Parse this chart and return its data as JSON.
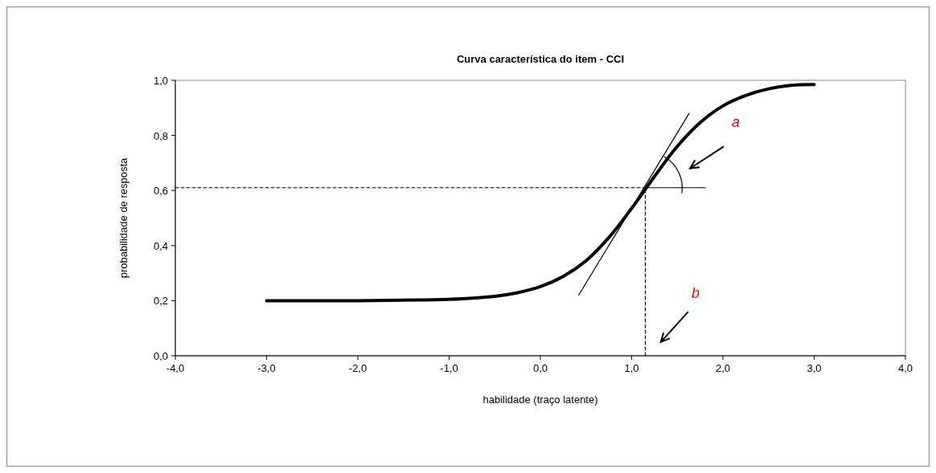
{
  "chart_data": {
    "type": "line",
    "title": "Curva característica do item - CCI",
    "xlabel": "habilidade (traço latente)",
    "ylabel": "probabilidade de resposta",
    "xlim": [
      -4,
      4
    ],
    "ylim": [
      0,
      1
    ],
    "xticks": [
      {
        "value": -4,
        "label": "-4,0"
      },
      {
        "value": -3,
        "label": "-3,0"
      },
      {
        "value": -2,
        "label": "-2,0"
      },
      {
        "value": -1,
        "label": "-1,0"
      },
      {
        "value": 0,
        "label": "0,0"
      },
      {
        "value": 1,
        "label": "1,0"
      },
      {
        "value": 2,
        "label": "2,0"
      },
      {
        "value": 3,
        "label": "3,0"
      },
      {
        "value": 4,
        "label": "4,0"
      }
    ],
    "yticks": [
      {
        "value": 0,
        "label": "0,0"
      },
      {
        "value": 0.2,
        "label": "0,2"
      },
      {
        "value": 0.4,
        "label": "0,4"
      },
      {
        "value": 0.6,
        "label": "0,6"
      },
      {
        "value": 0.8,
        "label": "0,8"
      },
      {
        "value": 1,
        "label": "1,0"
      }
    ],
    "grid": false,
    "marker": "none",
    "series": [
      {
        "color": "#000000",
        "line_style": "solid",
        "x": [
          -3,
          -2,
          -1.5,
          -1,
          -0.5,
          -0.25,
          0,
          0.25,
          0.5,
          0.75,
          1,
          1.25,
          1.5,
          1.75,
          2,
          2.25,
          2.5,
          2.75,
          3
        ],
        "values": [
          0.2,
          0.2,
          0.202,
          0.205,
          0.216,
          0.229,
          0.251,
          0.288,
          0.345,
          0.429,
          0.535,
          0.651,
          0.76,
          0.846,
          0.907,
          0.945,
          0.969,
          0.982,
          0.985
        ]
      },
      {
        "color": "#000000",
        "line_style": "solid",
        "x": [
          0.42,
          1.63
        ],
        "values": [
          0.22,
          0.88
        ]
      },
      {
        "color": "#000000",
        "line_style": "solid",
        "x": [
          1.15,
          1.81
        ],
        "values": [
          0.61,
          0.61
        ]
      },
      {
        "color": "#000000",
        "line_style": "dashed",
        "x": [
          -4,
          1.15
        ],
        "values": [
          0.61,
          0.61
        ]
      },
      {
        "color": "#000000",
        "line_style": "dashed",
        "x": [
          1.15,
          1.15
        ],
        "values": [
          0,
          0.61
        ]
      }
    ],
    "annotations": [
      "a",
      "b"
    ]
  }
}
